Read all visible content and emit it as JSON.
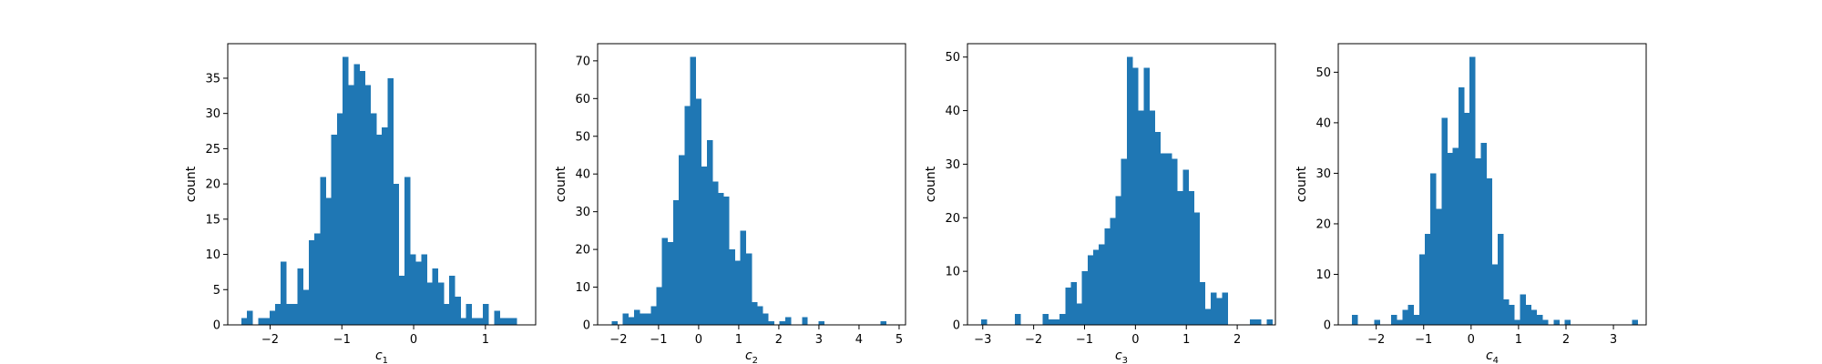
{
  "chart_data": [
    {
      "type": "bar",
      "xlabel": "c",
      "xlabel_sub": "1",
      "ylabel": "count",
      "xlim": [
        -2.59,
        1.7
      ],
      "ylim": [
        0,
        39.9
      ],
      "xticks": [
        -2,
        -1,
        0,
        1
      ],
      "xtick_labels": [
        "−2",
        "−1",
        "0",
        "1"
      ],
      "yticks": [
        0,
        5,
        10,
        15,
        20,
        25,
        30,
        35
      ],
      "ytick_labels": [
        "0",
        "5",
        "10",
        "15",
        "20",
        "25",
        "30",
        "35"
      ],
      "color": "#1f77b4",
      "bin_start": -2.4,
      "bin_width": 0.0783,
      "values": [
        1,
        2,
        0,
        1,
        1,
        2,
        3,
        9,
        3,
        3,
        8,
        5,
        12,
        13,
        21,
        18,
        27,
        30,
        38,
        34,
        37,
        36,
        34,
        30,
        27,
        28,
        35,
        20,
        7,
        21,
        10,
        9,
        10,
        6,
        8,
        6,
        3,
        7,
        4,
        1,
        3,
        1,
        1,
        3,
        0,
        2,
        1,
        1,
        1
      ]
    },
    {
      "type": "bar",
      "xlabel": "c",
      "xlabel_sub": "2",
      "ylabel": "count",
      "xlim": [
        -2.52,
        5.16
      ],
      "ylim": [
        0,
        74.55
      ],
      "xticks": [
        -2,
        -1,
        0,
        1,
        2,
        3,
        4,
        5
      ],
      "xtick_labels": [
        "−2",
        "−1",
        "0",
        "1",
        "2",
        "3",
        "4",
        "5"
      ],
      "yticks": [
        0,
        10,
        20,
        30,
        40,
        50,
        60,
        70
      ],
      "ytick_labels": [
        "0",
        "10",
        "20",
        "30",
        "40",
        "50",
        "60",
        "70"
      ],
      "color": "#1f77b4",
      "bin_start": -2.17,
      "bin_width": 0.1396,
      "values": [
        1,
        0,
        3,
        2,
        4,
        3,
        3,
        5,
        10,
        23,
        22,
        33,
        45,
        58,
        71,
        60,
        42,
        49,
        38,
        35,
        34,
        20,
        17,
        25,
        19,
        6,
        5,
        3,
        1,
        0,
        1,
        2,
        0,
        0,
        2,
        0,
        0,
        1,
        0,
        0,
        0,
        0,
        0,
        0,
        0,
        0,
        0,
        0,
        1,
        0
      ]
    },
    {
      "type": "bar",
      "xlabel": "c",
      "xlabel_sub": "3",
      "ylabel": "count",
      "xlim": [
        -3.3,
        2.75
      ],
      "ylim": [
        0,
        52.5
      ],
      "xticks": [
        -3,
        -2,
        -1,
        0,
        1,
        2
      ],
      "xtick_labels": [
        "−3",
        "−2",
        "−1",
        "0",
        "1",
        "2"
      ],
      "yticks": [
        0,
        10,
        20,
        30,
        40,
        50
      ],
      "ytick_labels": [
        "0",
        "10",
        "20",
        "30",
        "40",
        "50"
      ],
      "color": "#1f77b4",
      "bin_start": -3.03,
      "bin_width": 0.11,
      "values": [
        1,
        0,
        0,
        0,
        0,
        0,
        2,
        0,
        0,
        0,
        0,
        2,
        1,
        1,
        2,
        7,
        8,
        4,
        10,
        13,
        14,
        15,
        18,
        20,
        24,
        31,
        50,
        48,
        40,
        48,
        40,
        36,
        32,
        32,
        31,
        25,
        29,
        25,
        21,
        8,
        3,
        6,
        5,
        6,
        0,
        0,
        0,
        0,
        1,
        1,
        0,
        1
      ]
    },
    {
      "type": "bar",
      "xlabel": "c",
      "xlabel_sub": "4",
      "ylabel": "count",
      "xlim": [
        -2.8,
        3.69
      ],
      "ylim": [
        0,
        55.65
      ],
      "xticks": [
        -2,
        -1,
        0,
        1,
        2,
        3
      ],
      "xtick_labels": [
        "−2",
        "−1",
        "0",
        "1",
        "2",
        "3"
      ],
      "yticks": [
        0,
        10,
        20,
        30,
        40,
        50
      ],
      "ytick_labels": [
        "0",
        "10",
        "20",
        "30",
        "40",
        "50"
      ],
      "color": "#1f77b4",
      "bin_start": -2.51,
      "bin_width": 0.118,
      "values": [
        2,
        0,
        0,
        0,
        1,
        0,
        0,
        2,
        1,
        3,
        4,
        2,
        14,
        18,
        30,
        23,
        41,
        34,
        35,
        47,
        42,
        53,
        33,
        36,
        29,
        12,
        18,
        5,
        4,
        1,
        6,
        4,
        3,
        2,
        1,
        0,
        1,
        0,
        1,
        0,
        0,
        0,
        0,
        0,
        0,
        0,
        0,
        0,
        0,
        0,
        1
      ]
    }
  ]
}
